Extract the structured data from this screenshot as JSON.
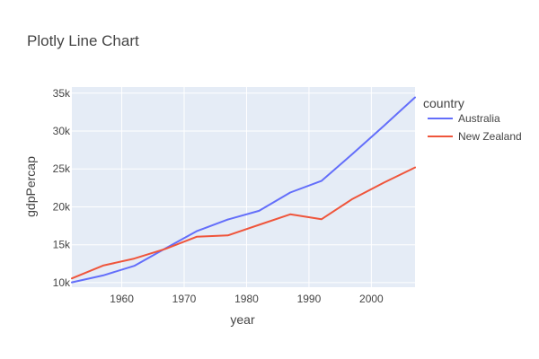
{
  "chart_data": {
    "type": "line",
    "title": "Plotly Line Chart",
    "xlabel": "year",
    "ylabel": "gdpPercap",
    "xlim": [
      1952,
      2007
    ],
    "ylim": [
      9400,
      35800
    ],
    "grid": true,
    "x_ticks": [
      1960,
      1970,
      1980,
      1990,
      2000
    ],
    "x_tick_labels": [
      "1960",
      "1970",
      "1980",
      "1990",
      "2000"
    ],
    "y_ticks": [
      10000,
      15000,
      20000,
      25000,
      30000,
      35000
    ],
    "y_tick_labels": [
      "10k",
      "15k",
      "20k",
      "25k",
      "30k",
      "35k"
    ],
    "legend": {
      "title": "country",
      "position": "right"
    },
    "x": [
      1952,
      1957,
      1962,
      1967,
      1972,
      1977,
      1982,
      1987,
      1992,
      1997,
      2002,
      2007
    ],
    "series": [
      {
        "name": "Australia",
        "color": "#636efa",
        "values": [
          10040,
          10950,
          12220,
          14530,
          16790,
          18330,
          19480,
          21890,
          23420,
          26990,
          30690,
          34440
        ]
      },
      {
        "name": "New Zealand",
        "color": "#ef553b",
        "values": [
          10560,
          12250,
          13180,
          14460,
          16050,
          16230,
          17630,
          19010,
          18360,
          21050,
          23190,
          25190
        ]
      }
    ],
    "colors": {
      "plot_bg": "#e5ecf6",
      "grid": "#ffffff",
      "text": "#444444"
    }
  }
}
